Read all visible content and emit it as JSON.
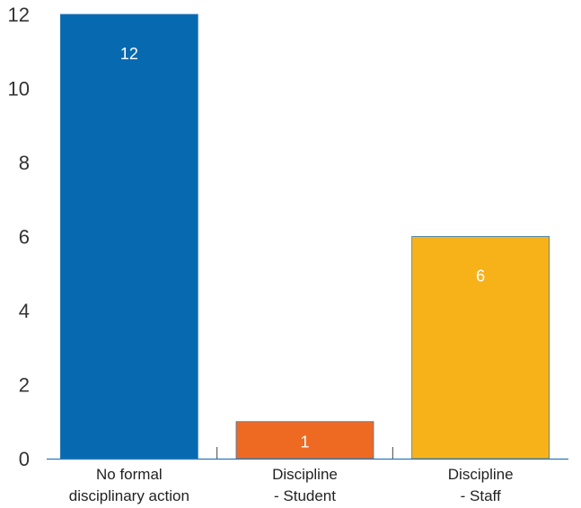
{
  "chart_data": {
    "type": "bar",
    "categories": [
      [
        "No formal",
        "disciplinary action"
      ],
      [
        "Discipline",
        "-  Student"
      ],
      [
        "Discipline",
        "-  Staff"
      ]
    ],
    "values": [
      12,
      1,
      6
    ],
    "data_labels": [
      "12",
      "1",
      "6"
    ],
    "colors": [
      "#0769B0",
      "#EE6A22",
      "#F8B219"
    ],
    "ylim": [
      0,
      12
    ],
    "yticks": [
      0,
      2,
      4,
      6,
      8,
      10,
      12
    ],
    "title": "",
    "xlabel": "",
    "ylabel": "",
    "grid": false,
    "legend": "none"
  }
}
